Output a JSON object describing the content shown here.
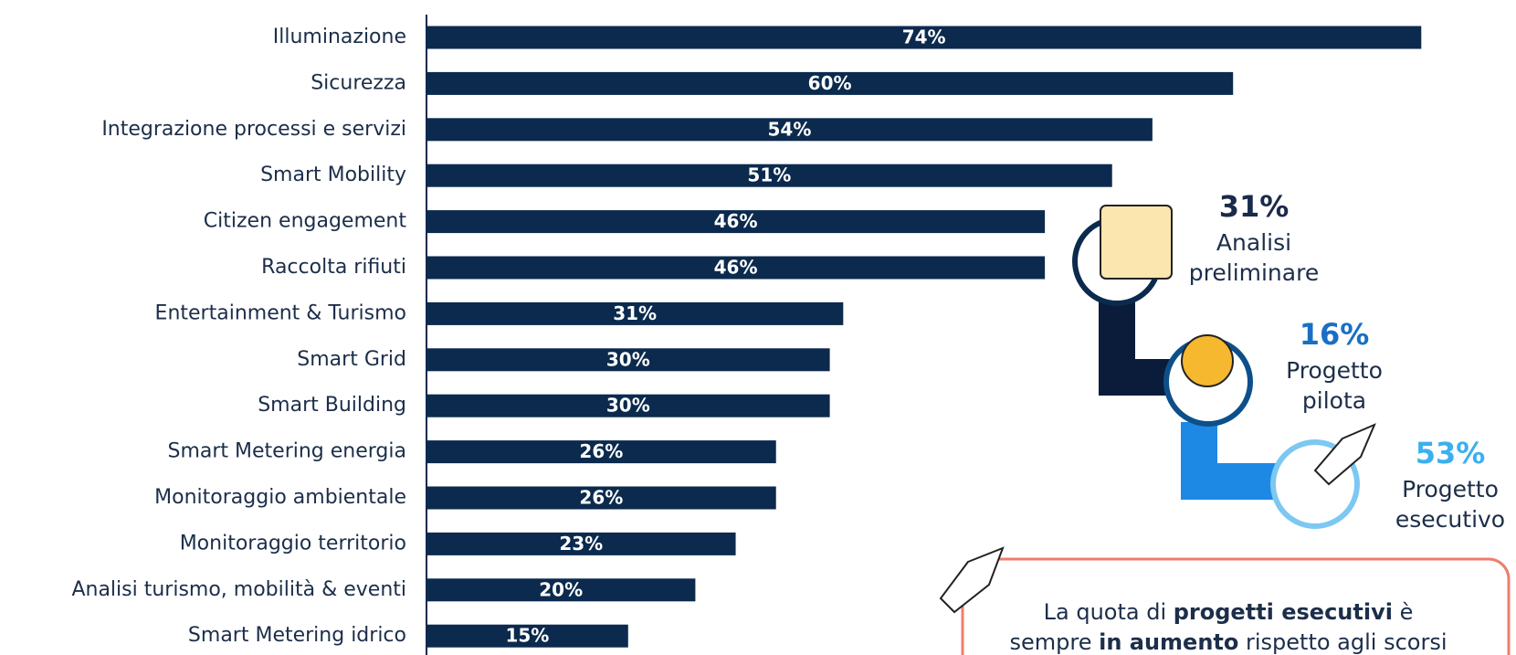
{
  "chart_data": {
    "type": "bar",
    "orientation": "horizontal",
    "color": "#0b2a4e",
    "label_color": "#ffffff",
    "categories": [
      "Illuminazione",
      "Sicurezza",
      "Integrazione processi e servizi",
      "Smart Mobility",
      "Citizen engagement",
      "Raccolta rifiuti",
      "Entertainment & Turismo",
      "Smart Grid",
      "Smart Building",
      "Smart Metering energia",
      "Monitoraggio ambientale",
      "Monitoraggio territorio",
      "Analisi turismo, mobilità & eventi",
      "Smart Metering idrico"
    ],
    "values": [
      74,
      60,
      54,
      51,
      46,
      46,
      31,
      30,
      30,
      26,
      26,
      23,
      20,
      15
    ],
    "value_labels": [
      "74%",
      "60%",
      "54%",
      "51%",
      "46%",
      "46%",
      "31%",
      "30%",
      "30%",
      "26%",
      "26%",
      "23%",
      "20%",
      "15%"
    ]
  },
  "phases": [
    {
      "percent": "31%",
      "label": [
        "Analisi",
        "preliminare"
      ],
      "color": "#1a2a4a"
    },
    {
      "percent": "16%",
      "label": [
        "Progetto",
        "pilota"
      ],
      "color": "#1a6fc4"
    },
    {
      "percent": "53%",
      "label": [
        "Progetto",
        "esecutivo"
      ],
      "color": "#3ab0ef"
    }
  ],
  "callout": {
    "lines": [
      [
        {
          "text": "La quota di ",
          "bold": false
        },
        {
          "text": "progetti esecutivi",
          "bold": true
        },
        {
          "text": " è",
          "bold": false
        }
      ],
      [
        {
          "text": "sempre ",
          "bold": false
        },
        {
          "text": "in aumento",
          "bold": true
        },
        {
          "text": " rispetto agli scorsi",
          "bold": false
        }
      ]
    ]
  }
}
